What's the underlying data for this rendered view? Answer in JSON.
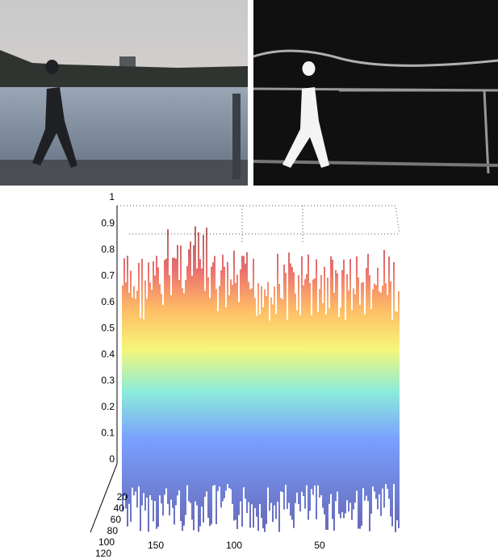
{
  "plot": {
    "z_ticks": [
      0,
      0.1,
      0.2,
      0.3,
      0.4,
      0.5,
      0.6,
      0.7,
      0.8,
      0.9,
      1
    ],
    "depth_ticks": [
      20,
      40,
      60,
      80,
      100,
      120
    ],
    "x_ticks": [
      150,
      100,
      50
    ]
  }
}
